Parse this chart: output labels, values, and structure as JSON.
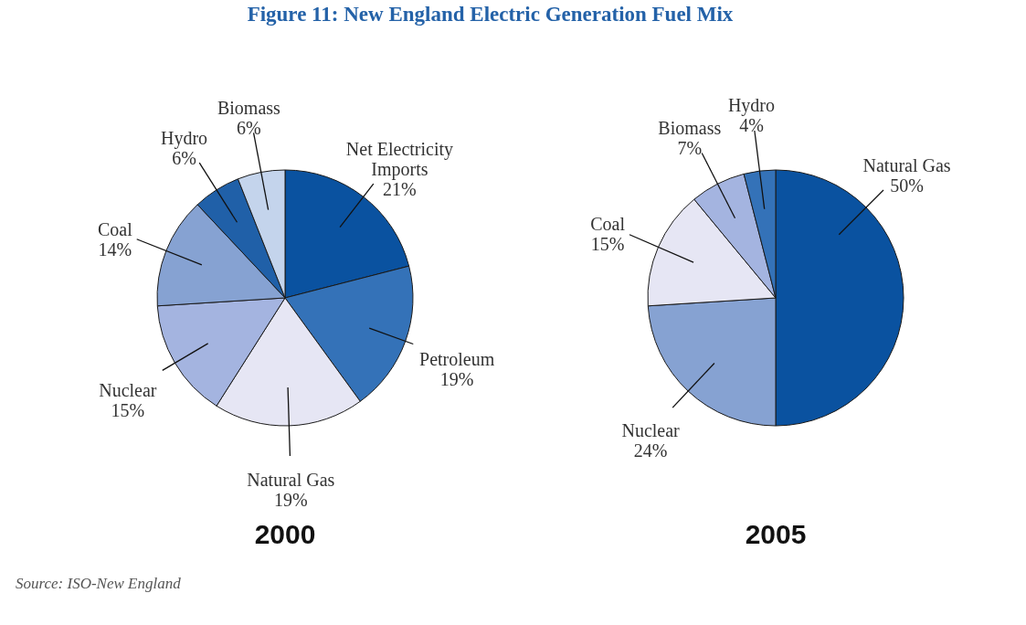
{
  "chart_data": [
    {
      "type": "pie",
      "title": "Figure 11: New England Electric Generation Fuel Mix",
      "xlabel": "2000",
      "categories": [
        "Net Electricity Imports",
        "Petroleum",
        "Natural Gas",
        "Nuclear",
        "Coal",
        "Hydro",
        "Biomass"
      ],
      "values": [
        21,
        19,
        19,
        15,
        14,
        6,
        6
      ],
      "colors": [
        "#0a52a0",
        "#3472b8",
        "#e6e6f4",
        "#a4b4e0",
        "#86a2d2",
        "#2060a8",
        "#c4d4ec"
      ],
      "value_labels": [
        "21%",
        "19%",
        "19%",
        "15%",
        "14%",
        "6%",
        "6%"
      ],
      "annotations": [
        "Source: ISO-New England"
      ]
    },
    {
      "type": "pie",
      "xlabel": "2005",
      "categories": [
        "Natural Gas",
        "Nuclear",
        "Coal",
        "Biomass",
        "Hydro"
      ],
      "values": [
        50,
        24,
        15,
        7,
        4
      ],
      "colors": [
        "#0a52a0",
        "#86a2d2",
        "#e6e6f4",
        "#a4b4e0",
        "#3472b8"
      ],
      "value_labels": [
        "50%",
        "24%",
        "15%",
        "7%",
        "4%"
      ]
    }
  ]
}
